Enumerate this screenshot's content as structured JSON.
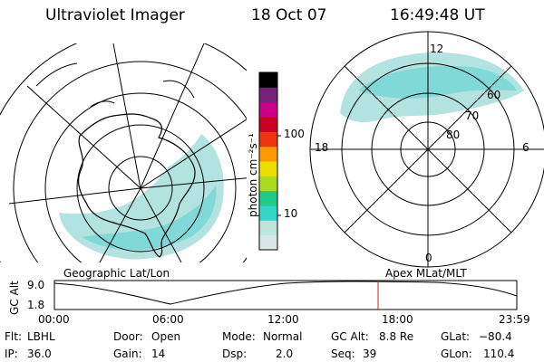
{
  "header": {
    "title": "Ultraviolet Imager",
    "date": "18 Oct 07",
    "time": "16:49:48 UT"
  },
  "colorbar": {
    "unit_label": "photon cm⁻²s⁻¹",
    "ticks": [
      "100",
      "10"
    ],
    "colors": [
      "#d9e6e6",
      "#bfe3dd",
      "#33d6c8",
      "#22cc88",
      "#aadd22",
      "#eedd00",
      "#ff9900",
      "#ee3311",
      "#cc0022",
      "#cc0088",
      "#77227a",
      "#000000"
    ]
  },
  "left_panel": {
    "caption": "Geographic Lat/Lon",
    "projection": "geographic",
    "emission_color": "#66d0d0"
  },
  "right_panel": {
    "caption": "Apex MLat/MLT",
    "lat_labels": [
      "60",
      "70",
      "80"
    ],
    "mlt_labels": {
      "top": "12",
      "bottom": "0",
      "left": "18",
      "right": "6"
    },
    "emission_color": "#66d0d0"
  },
  "timeline": {
    "axis_label": "GC Alt",
    "y_ticks": [
      "9.0",
      "1.8"
    ],
    "x_ticks": [
      "00:00",
      "06:00",
      "12:00",
      "18:00",
      "23:59"
    ],
    "current_time_fraction": 0.7,
    "marker_color": "#cc2222"
  },
  "status": {
    "row1": [
      {
        "label": "Flt:",
        "value": "LBHL"
      },
      {
        "label": "Door:",
        "value": "Open"
      },
      {
        "label": "Mode:",
        "value": "Normal"
      },
      {
        "label": "GC Alt:",
        "value": "8.8 Re"
      },
      {
        "label": "GLat:",
        "value": "−80.4"
      }
    ],
    "row2": [
      {
        "label": "IP:",
        "value": "36.0"
      },
      {
        "label": "Gain:",
        "value": "14"
      },
      {
        "label": "Dsp:",
        "value": "2.0"
      },
      {
        "label": "Seq:",
        "value": "39"
      },
      {
        "label": "GLon:",
        "value": "110.4"
      }
    ]
  }
}
